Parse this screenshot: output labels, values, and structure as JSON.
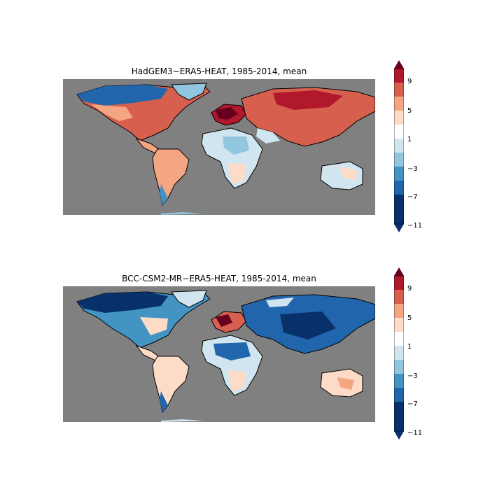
{
  "panels": [
    {
      "title": "HadGEM3−ERA5-HEAT, 1985-2014, mean",
      "colorbar": {
        "ticks": [
          "9",
          "5",
          "1",
          "−3",
          "−7",
          "−11"
        ],
        "extend": "both"
      }
    },
    {
      "title": "BCC-CSM2-MR−ERA5-HEAT, 1985-2014, mean",
      "colorbar": {
        "ticks": [
          "9",
          "5",
          "1",
          "−3",
          "−7",
          "−11"
        ],
        "extend": "both"
      }
    }
  ],
  "colors": {
    "ocean_mask": "#808080",
    "levels": [
      "#08306b",
      "#2166ac",
      "#4393c3",
      "#92c5de",
      "#d1e5f0",
      "#ffffff",
      "#fddbc7",
      "#f4a582",
      "#d6604d",
      "#b2182b",
      "#67001f"
    ]
  }
}
